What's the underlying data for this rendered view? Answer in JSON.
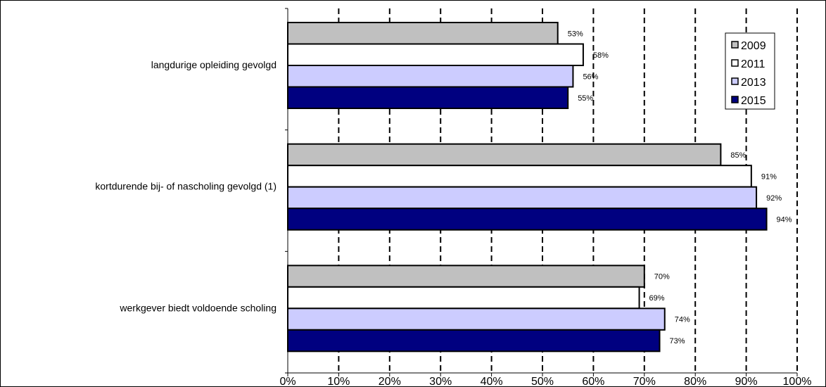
{
  "chart_data": {
    "type": "bar",
    "orientation": "horizontal",
    "categories": [
      "langdurige opleiding gevolgd",
      "kortdurende bij- of nascholing gevolgd (1)",
      "werkgever biedt voldoende scholing"
    ],
    "series": [
      {
        "name": "2009",
        "color": "#c0c0c0",
        "values": [
          53,
          85,
          70
        ],
        "labels": [
          "53%",
          "85%",
          "70%"
        ]
      },
      {
        "name": "2011",
        "color": "#ffffff",
        "values": [
          58,
          91,
          69
        ],
        "labels": [
          "58%",
          "91%",
          "69%"
        ]
      },
      {
        "name": "2013",
        "color": "#ccccff",
        "values": [
          56,
          92,
          74
        ],
        "labels": [
          "56%",
          "92%",
          "74%"
        ]
      },
      {
        "name": "2015",
        "color": "#000080",
        "values": [
          55,
          94,
          73
        ],
        "labels": [
          "55%",
          "94%",
          "73%"
        ]
      }
    ],
    "xlim": [
      0,
      100
    ],
    "x_ticks": [
      "0%",
      "10%",
      "20%",
      "30%",
      "40%",
      "50%",
      "60%",
      "70%",
      "80%",
      "90%",
      "100%"
    ],
    "grid": "vertical dashed",
    "legend_position": "top-right"
  }
}
